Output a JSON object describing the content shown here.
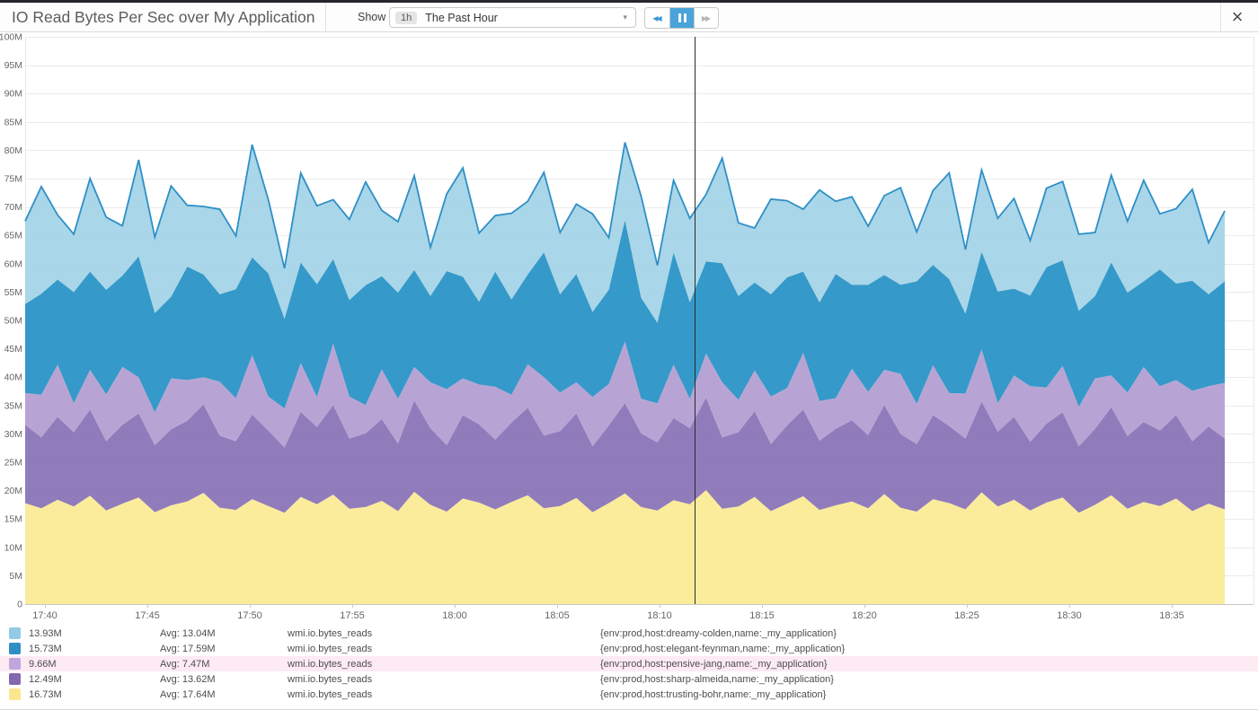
{
  "header": {
    "title": "IO Read Bytes Per Sec over My Application",
    "show_label": "Show",
    "timeframe": {
      "badge": "1h",
      "label": "The Past Hour",
      "caret": "▾"
    },
    "playback": {
      "rewind": "◀◀",
      "forward": "▶▶"
    },
    "close_glyph": "×"
  },
  "colors": {
    "accent_blue": "#4aa3d9",
    "cursor_line": "#2b2b2b",
    "grid_line": "#ebebeb",
    "axis_line": "#c8c8c8",
    "axis_text": "#666666",
    "legend_highlight": "#fdeaf3"
  },
  "chart_data": {
    "type": "area",
    "stacked": true,
    "title": "IO Read Bytes Per Sec over My Application",
    "unit": "M (bytes/sec)",
    "ylim": [
      0,
      100
    ],
    "grid": true,
    "y_ticks": [
      "0",
      "5M",
      "10M",
      "15M",
      "20M",
      "25M",
      "30M",
      "35M",
      "40M",
      "45M",
      "50M",
      "55M",
      "60M",
      "65M",
      "70M",
      "75M",
      "80M",
      "85M",
      "90M",
      "95M",
      "100M"
    ],
    "x_ticks": [
      "17:40",
      "17:45",
      "17:50",
      "17:55",
      "18:00",
      "18:05",
      "18:10",
      "18:15",
      "18:20",
      "18:25",
      "18:30",
      "18:35"
    ],
    "x_range": [
      "17:39",
      "18:38"
    ],
    "cursor_x_fraction": 0.558,
    "series": [
      {
        "name": "trusting-bohr",
        "metric": "wmi.io.bytes_reads",
        "fill": "#fbeb97",
        "stroke": null,
        "values": [
          17.8,
          16.9,
          18.4,
          17.2,
          19.1,
          16.5,
          17.7,
          18.8,
          16.2,
          17.4,
          18.1,
          19.6,
          17.0,
          16.6,
          18.5,
          17.3,
          16.1,
          18.9,
          17.6,
          19.3,
          16.8,
          17.1,
          18.2,
          16.4,
          19.8,
          17.5,
          16.3,
          18.6,
          17.9,
          16.7,
          18.0,
          19.2,
          16.9,
          17.3,
          18.7,
          16.2,
          17.8,
          19.5,
          17.1,
          16.5,
          18.3,
          17.6,
          20.1,
          16.8,
          17.2,
          18.9,
          16.4,
          17.7,
          19.0,
          16.6,
          17.4,
          18.1,
          16.9,
          19.4,
          17.0,
          16.3,
          18.5,
          17.8,
          16.7,
          19.7,
          17.2,
          18.4,
          16.5,
          17.9,
          18.8,
          16.1,
          17.5,
          19.2,
          16.8,
          18.0,
          17.3,
          18.6,
          16.4,
          17.7,
          16.7
        ]
      },
      {
        "name": "sharp-almeida",
        "metric": "wmi.io.bytes_reads",
        "fill": "#8b75b7",
        "stroke": null,
        "values": [
          13.8,
          12.5,
          14.6,
          13.1,
          15.2,
          12.2,
          13.9,
          14.8,
          11.8,
          13.4,
          14.2,
          15.6,
          12.7,
          12.1,
          14.9,
          13.3,
          11.5,
          15.0,
          13.6,
          15.8,
          12.4,
          13.0,
          14.4,
          11.9,
          16.1,
          13.5,
          11.7,
          14.7,
          13.8,
          12.3,
          14.0,
          15.4,
          12.8,
          13.2,
          14.9,
          11.6,
          13.7,
          15.9,
          13.0,
          12.0,
          14.5,
          13.4,
          16.3,
          12.6,
          13.1,
          15.1,
          11.8,
          13.8,
          15.3,
          12.2,
          13.5,
          14.3,
          12.9,
          15.7,
          13.0,
          11.9,
          14.8,
          13.6,
          12.5,
          16.0,
          13.2,
          14.6,
          12.1,
          13.9,
          15.0,
          11.7,
          13.4,
          15.5,
          12.8,
          14.1,
          13.3,
          14.7,
          12.3,
          13.6,
          12.5
        ]
      },
      {
        "name": "pensive-jang",
        "metric": "wmi.io.bytes_reads",
        "fill": "#b49fd2",
        "stroke": null,
        "values": [
          5.6,
          7.5,
          9.2,
          5.1,
          7.0,
          8.3,
          10.2,
          6.4,
          5.8,
          9.0,
          7.2,
          4.8,
          9.5,
          7.6,
          10.5,
          6.0,
          6.9,
          8.6,
          5.3,
          10.8,
          7.4,
          5.0,
          8.8,
          7.9,
          5.9,
          8.1,
          9.9,
          6.5,
          7.0,
          9.3,
          4.9,
          7.7,
          10.3,
          6.8,
          5.5,
          8.7,
          7.3,
          10.9,
          6.1,
          6.9,
          9.4,
          5.2,
          7.8,
          9.7,
          5.7,
          7.2,
          8.4,
          6.6,
          10.0,
          7.0,
          5.4,
          9.1,
          7.6,
          6.2,
          10.6,
          7.1,
          8.8,
          5.8,
          7.9,
          9.2,
          5.0,
          7.3,
          9.8,
          6.4,
          8.2,
          7.0,
          8.9,
          5.6,
          7.7,
          9.7,
          7.8,
          6.2,
          8.9,
          7.1,
          9.8
        ]
      },
      {
        "name": "elegant-feynman",
        "metric": "wmi.io.bytes_reads",
        "fill": "#2a93c6",
        "stroke": null,
        "values": [
          15.7,
          17.8,
          15.0,
          19.6,
          17.3,
          18.4,
          16.1,
          21.3,
          17.5,
          14.4,
          20.0,
          18.1,
          15.4,
          19.2,
          17.2,
          21.7,
          15.8,
          17.7,
          19.9,
          14.9,
          17.0,
          21.1,
          16.4,
          18.7,
          17.1,
          15.2,
          20.8,
          17.9,
          14.6,
          20.3,
          16.8,
          15.8,
          22.0,
          17.3,
          19.1,
          15.0,
          16.6,
          21.4,
          17.8,
          14.2,
          19.8,
          17.0,
          16.2,
          21.0,
          18.3,
          15.5,
          18.0,
          19.5,
          14.3,
          17.4,
          21.9,
          14.8,
          18.9,
          16.7,
          15.7,
          21.6,
          17.7,
          20.1,
          14.1,
          17.2,
          19.7,
          15.3,
          16.0,
          21.2,
          18.6,
          16.9,
          14.5,
          19.9,
          17.6,
          15.1,
          20.6,
          17.0,
          19.4,
          16.2,
          17.9
        ]
      },
      {
        "name": "dreamy-colden",
        "metric": "wmi.io.bytes_reads",
        "fill": "#a4d4e7",
        "stroke": "#2e8fc6",
        "values": [
          14.6,
          18.9,
          11.4,
          10.2,
          16.4,
          12.8,
          8.8,
          17.0,
          13.4,
          19.5,
          10.8,
          12.0,
          15.0,
          9.4,
          19.9,
          13.0,
          8.9,
          15.8,
          13.8,
          10.5,
          14.2,
          18.2,
          11.6,
          12.5,
          16.6,
          8.6,
          13.6,
          19.2,
          12.1,
          9.9,
          15.2,
          12.9,
          14.1,
          10.9,
          12.3,
          17.3,
          9.2,
          13.7,
          17.9,
          10.1,
          12.7,
          14.8,
          11.8,
          18.5,
          12.9,
          9.6,
          16.8,
          13.5,
          11.0,
          19.8,
          12.8,
          15.5,
          10.3,
          14.0,
          17.1,
          8.7,
          13.1,
          18.7,
          11.3,
          14.4,
          12.9,
          15.9,
          9.7,
          13.9,
          13.9,
          13.5,
          11.2,
          15.4,
          12.6,
          17.8,
          9.8,
          13.2,
          16.1,
          9.1,
          12.4
        ]
      }
    ]
  },
  "legend": {
    "rows": [
      {
        "swatch": "#92cbe3",
        "value": "13.93M",
        "avg": "Avg: 13.04M",
        "metric": "wmi.io.bytes_reads",
        "scope": "{env:prod,host:dreamy-colden,name:_my_application}",
        "highlighted": false
      },
      {
        "swatch": "#2d8fc4",
        "value": "15.73M",
        "avg": "Avg: 17.59M",
        "metric": "wmi.io.bytes_reads",
        "scope": "{env:prod,host:elegant-feynman,name:_my_application}",
        "highlighted": false
      },
      {
        "swatch": "#bfa6dc",
        "value": "9.66M",
        "avg": "Avg: 7.47M",
        "metric": "wmi.io.bytes_reads",
        "scope": "{env:prod,host:pensive-jang,name:_my_application}",
        "highlighted": true
      },
      {
        "swatch": "#8367af",
        "value": "12.49M",
        "avg": "Avg: 13.62M",
        "metric": "wmi.io.bytes_reads",
        "scope": "{env:prod,host:sharp-almeida,name:_my_application}",
        "highlighted": false
      },
      {
        "swatch": "#fbe78c",
        "value": "16.73M",
        "avg": "Avg: 17.64M",
        "metric": "wmi.io.bytes_reads",
        "scope": "{env:prod,host:trusting-bohr,name:_my_application}",
        "highlighted": false
      }
    ]
  }
}
